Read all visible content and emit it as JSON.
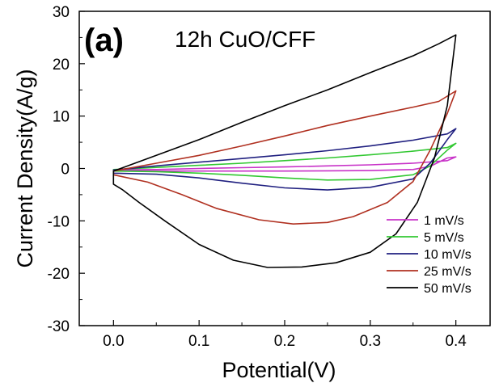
{
  "chart_data": {
    "type": "line",
    "panel_label": "(a)",
    "annotation": "12h CuO/CFF",
    "xlabel": "Potential(V)",
    "ylabel": "Current Density(A/g)",
    "xlim": [
      -0.04,
      0.44
    ],
    "ylim": [
      -30,
      30
    ],
    "xticks": [
      "0.0",
      "0.1",
      "0.2",
      "0.3",
      "0.4"
    ],
    "xtick_values": [
      0.0,
      0.1,
      0.2,
      0.3,
      0.4
    ],
    "yticks": [
      "30",
      "20",
      "10",
      "0",
      "-10",
      "-20",
      "-30"
    ],
    "ytick_values": [
      30,
      20,
      10,
      0,
      -10,
      -20,
      -30
    ],
    "grid": false,
    "legend_position": "bottom-right",
    "series": [
      {
        "name": "1 mV/s",
        "color": "#c832c8",
        "points": [
          [
            0.0,
            -0.3
          ],
          [
            0.05,
            -0.2
          ],
          [
            0.1,
            0.0
          ],
          [
            0.15,
            0.15
          ],
          [
            0.2,
            0.3
          ],
          [
            0.25,
            0.5
          ],
          [
            0.3,
            0.7
          ],
          [
            0.35,
            1.0
          ],
          [
            0.39,
            1.5
          ],
          [
            0.4,
            2.2
          ],
          [
            0.39,
            2.0
          ],
          [
            0.37,
            0.4
          ],
          [
            0.35,
            -0.2
          ],
          [
            0.3,
            -0.4
          ],
          [
            0.25,
            -0.45
          ],
          [
            0.2,
            -0.5
          ],
          [
            0.15,
            -0.5
          ],
          [
            0.1,
            -0.5
          ],
          [
            0.05,
            -0.5
          ],
          [
            0.0,
            -0.5
          ]
        ]
      },
      {
        "name": "5 mV/s",
        "color": "#32c832",
        "points": [
          [
            0.0,
            -0.2
          ],
          [
            0.05,
            0.2
          ],
          [
            0.1,
            0.6
          ],
          [
            0.15,
            1.0
          ],
          [
            0.2,
            1.5
          ],
          [
            0.25,
            2.0
          ],
          [
            0.3,
            2.6
          ],
          [
            0.35,
            3.3
          ],
          [
            0.39,
            4.0
          ],
          [
            0.4,
            4.8
          ],
          [
            0.39,
            3.5
          ],
          [
            0.37,
            0.5
          ],
          [
            0.35,
            -1.2
          ],
          [
            0.3,
            -2.1
          ],
          [
            0.25,
            -2.2
          ],
          [
            0.2,
            -1.8
          ],
          [
            0.15,
            -1.3
          ],
          [
            0.1,
            -0.9
          ],
          [
            0.05,
            -0.6
          ],
          [
            0.0,
            -0.5
          ]
        ]
      },
      {
        "name": "10 mV/s",
        "color": "#202080",
        "points": [
          [
            0.0,
            -0.3
          ],
          [
            0.05,
            0.5
          ],
          [
            0.1,
            1.2
          ],
          [
            0.15,
            1.9
          ],
          [
            0.2,
            2.6
          ],
          [
            0.25,
            3.4
          ],
          [
            0.3,
            4.3
          ],
          [
            0.35,
            5.4
          ],
          [
            0.39,
            6.6
          ],
          [
            0.4,
            7.6
          ],
          [
            0.39,
            5.5
          ],
          [
            0.37,
            1.0
          ],
          [
            0.35,
            -2.0
          ],
          [
            0.3,
            -3.6
          ],
          [
            0.25,
            -4.1
          ],
          [
            0.2,
            -3.7
          ],
          [
            0.15,
            -2.8
          ],
          [
            0.1,
            -1.8
          ],
          [
            0.05,
            -1.1
          ],
          [
            0.0,
            -0.9
          ]
        ]
      },
      {
        "name": "25 mV/s",
        "color": "#b03020",
        "points": [
          [
            0.0,
            -0.5
          ],
          [
            0.05,
            1.0
          ],
          [
            0.1,
            2.5
          ],
          [
            0.15,
            4.3
          ],
          [
            0.2,
            6.2
          ],
          [
            0.25,
            8.2
          ],
          [
            0.3,
            10.0
          ],
          [
            0.35,
            11.7
          ],
          [
            0.38,
            12.8
          ],
          [
            0.4,
            14.8
          ],
          [
            0.39,
            10.5
          ],
          [
            0.37,
            3.5
          ],
          [
            0.35,
            -2.5
          ],
          [
            0.32,
            -6.5
          ],
          [
            0.28,
            -9.2
          ],
          [
            0.25,
            -10.3
          ],
          [
            0.21,
            -10.6
          ],
          [
            0.17,
            -9.8
          ],
          [
            0.12,
            -7.6
          ],
          [
            0.08,
            -5.0
          ],
          [
            0.04,
            -2.6
          ],
          [
            0.0,
            -1.2
          ]
        ]
      },
      {
        "name": "50 mV/s",
        "color": "#000000",
        "points": [
          [
            0.0,
            -0.5
          ],
          [
            0.05,
            2.5
          ],
          [
            0.1,
            5.5
          ],
          [
            0.15,
            8.8
          ],
          [
            0.2,
            12.0
          ],
          [
            0.25,
            15.0
          ],
          [
            0.3,
            18.3
          ],
          [
            0.35,
            21.5
          ],
          [
            0.38,
            23.8
          ],
          [
            0.4,
            25.5
          ],
          [
            0.39,
            12.0
          ],
          [
            0.375,
            2.0
          ],
          [
            0.355,
            -6.5
          ],
          [
            0.33,
            -12.5
          ],
          [
            0.3,
            -16.0
          ],
          [
            0.26,
            -18.0
          ],
          [
            0.22,
            -18.8
          ],
          [
            0.18,
            -18.9
          ],
          [
            0.14,
            -17.5
          ],
          [
            0.1,
            -14.5
          ],
          [
            0.06,
            -10.0
          ],
          [
            0.03,
            -6.5
          ],
          [
            0.01,
            -4.0
          ],
          [
            0.0,
            -3.0
          ]
        ]
      }
    ]
  }
}
